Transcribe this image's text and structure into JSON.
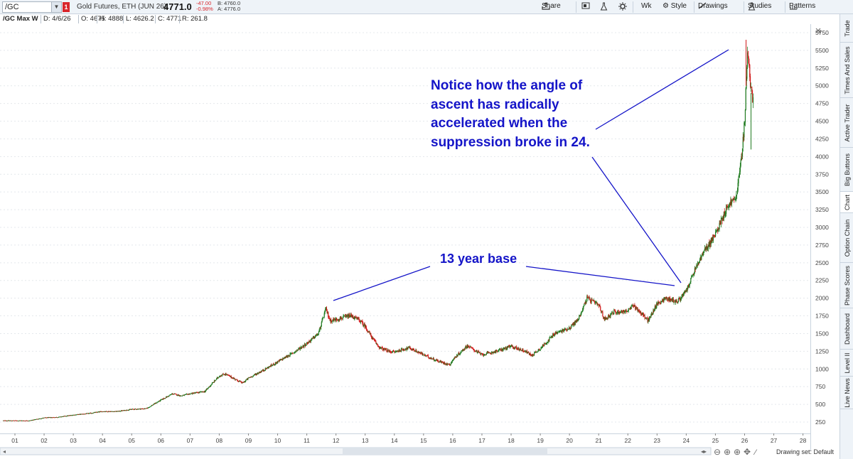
{
  "toolbar": {
    "symbol": "/GC",
    "link_badge": "1",
    "description": "Gold Futures, ETH (JUN 26)",
    "last": "4771.0",
    "change_net": "-47.00",
    "change_pct": "-0.98%",
    "bid": "B: 4760.0",
    "ask": "A: 4776.0",
    "share": "Share",
    "aggregation": "Wk",
    "style": "Style",
    "drawings": "Drawings",
    "studies": "Studies",
    "patterns": "Patterns"
  },
  "header": {
    "title": "/GC Max W",
    "date": "D: 4/6/26",
    "open": "O: 4675",
    "high": "H: 4888",
    "low": "L: 4626.2",
    "close": "C: 4771",
    "range": "R: 261.8"
  },
  "side_tabs": [
    "Trade",
    "Times And Sales",
    "Active Trader",
    "Big Buttons",
    "Chart",
    "Option Chain",
    "Phase Scores",
    "Dashboard",
    "Level II",
    "Live News"
  ],
  "active_side_tab": "Chart",
  "footer": {
    "drawing_set": "Drawing set: Default"
  },
  "annotations": {
    "top": [
      "Notice how the angle of",
      "ascent has radically",
      "accelerated when the",
      "suppression broke in 24."
    ],
    "base": "13 year base"
  },
  "colors": {
    "up": "#1f7a1f",
    "down": "#d01818",
    "annotation": "#1414c8",
    "grid": "#e4e8ec"
  },
  "chart_data": {
    "type": "candlestick",
    "title": "/GC Max W",
    "xlabel": "",
    "ylabel": "",
    "x_tick_labels": [
      "01",
      "02",
      "03",
      "04",
      "05",
      "06",
      "07",
      "08",
      "09",
      "10",
      "11",
      "12",
      "13",
      "14",
      "15",
      "16",
      "17",
      "18",
      "19",
      "20",
      "21",
      "22",
      "23",
      "24",
      "25",
      "26",
      "27",
      "28"
    ],
    "y_ticks": [
      250,
      500,
      750,
      1000,
      1250,
      1500,
      1750,
      2000,
      2250,
      2500,
      2750,
      3000,
      3250,
      3500,
      3750,
      4000,
      4250,
      4500,
      4750,
      5000,
      5250,
      5500,
      5750
    ],
    "ylim": [
      100,
      5850
    ],
    "grid": true,
    "x": [
      2000.9,
      2001.5,
      2002.0,
      2002.5,
      2003.0,
      2003.5,
      2004.0,
      2004.5,
      2005.0,
      2005.5,
      2006.0,
      2006.4,
      2006.7,
      2007.0,
      2007.5,
      2008.0,
      2008.2,
      2008.8,
      2009.0,
      2009.5,
      2010.0,
      2010.5,
      2011.0,
      2011.4,
      2011.65,
      2011.8,
      2012.0,
      2012.5,
      2012.8,
      2013.0,
      2013.3,
      2013.5,
      2013.8,
      2014.0,
      2014.5,
      2015.0,
      2015.5,
      2015.9,
      2016.0,
      2016.5,
      2017.0,
      2017.5,
      2018.0,
      2018.5,
      2018.7,
      2019.0,
      2019.5,
      2020.0,
      2020.3,
      2020.6,
      2021.0,
      2021.2,
      2021.5,
      2022.0,
      2022.2,
      2022.7,
      2023.0,
      2023.3,
      2023.7,
      2024.0,
      2024.3,
      2024.6,
      2025.0,
      2025.3,
      2025.5,
      2025.7,
      2025.9,
      2026.0,
      2026.1,
      2026.2,
      2026.3
    ],
    "close": [
      270,
      270,
      310,
      320,
      350,
      370,
      400,
      400,
      430,
      440,
      560,
      650,
      620,
      650,
      680,
      900,
      930,
      800,
      870,
      980,
      1100,
      1220,
      1360,
      1500,
      1850,
      1680,
      1700,
      1750,
      1690,
      1600,
      1400,
      1300,
      1250,
      1240,
      1300,
      1200,
      1110,
      1060,
      1130,
      1330,
      1200,
      1250,
      1320,
      1250,
      1190,
      1290,
      1500,
      1580,
      1700,
      2000,
      1900,
      1700,
      1800,
      1820,
      1900,
      1680,
      1920,
      2000,
      1950,
      2100,
      2400,
      2650,
      2900,
      3200,
      3350,
      3400,
      4000,
      4500,
      5500,
      5000,
      4771
    ]
  }
}
